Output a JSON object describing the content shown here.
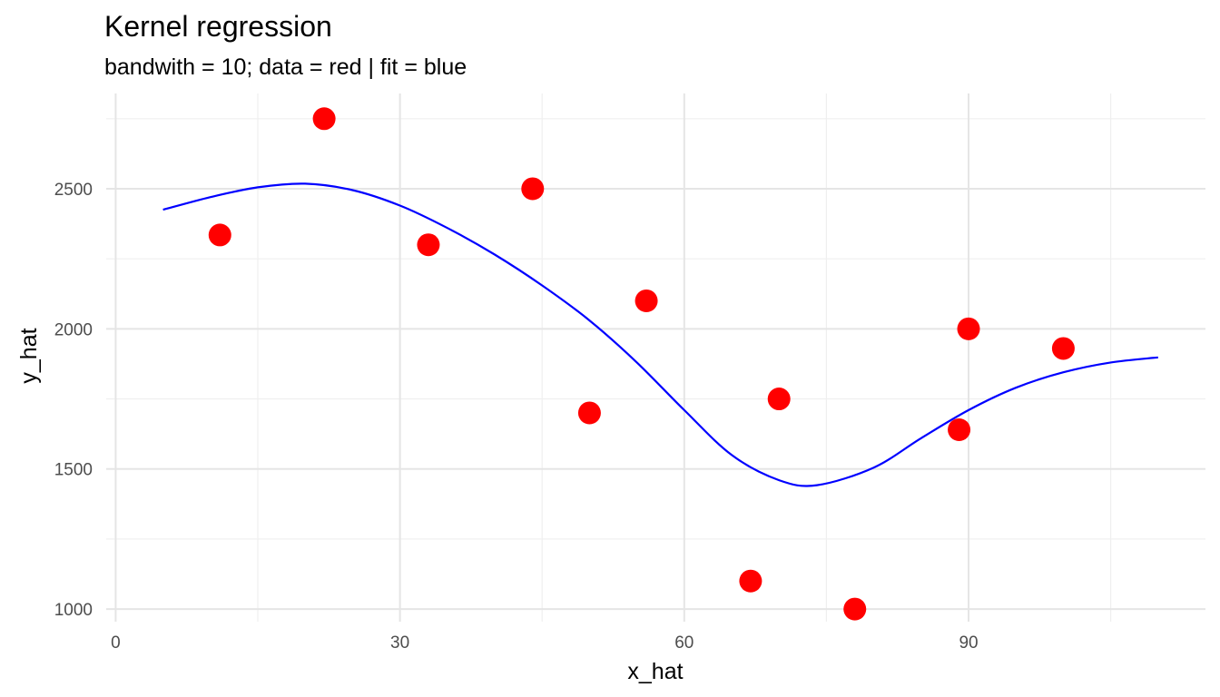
{
  "chart_data": {
    "type": "scatter",
    "title": "Kernel regression",
    "subtitle": "bandwith = 10; data = red | fit = blue",
    "xlabel": "x_hat",
    "ylabel": "y_hat",
    "xlim": [
      -1,
      115
    ],
    "ylim": [
      955,
      2840
    ],
    "x_ticks": [
      0,
      30,
      60,
      90
    ],
    "x_minor": [
      15,
      45,
      75,
      105
    ],
    "y_ticks": [
      1000,
      1500,
      2000,
      2500
    ],
    "y_minor": [
      1250,
      1750,
      2250,
      2750
    ],
    "grid": true,
    "series": [
      {
        "kind": "points",
        "color": "#ff0000",
        "x": [
          11,
          22,
          33,
          44,
          50,
          56,
          67,
          70,
          78,
          89,
          90,
          100
        ],
        "y": [
          2335,
          2750,
          2300,
          2500,
          1700,
          2100,
          1100,
          1750,
          1000,
          1640,
          2000,
          1930
        ]
      },
      {
        "kind": "line",
        "color": "#0000ff",
        "x": [
          5,
          10,
          15,
          20,
          25,
          30,
          35,
          40,
          45,
          50,
          55,
          60,
          65,
          70,
          74,
          80,
          85,
          90,
          95,
          100,
          105,
          110
        ],
        "y": [
          2425,
          2470,
          2505,
          2518,
          2495,
          2440,
          2360,
          2265,
          2155,
          2030,
          1880,
          1710,
          1550,
          1460,
          1442,
          1505,
          1610,
          1710,
          1790,
          1845,
          1880,
          1898
        ]
      }
    ]
  }
}
